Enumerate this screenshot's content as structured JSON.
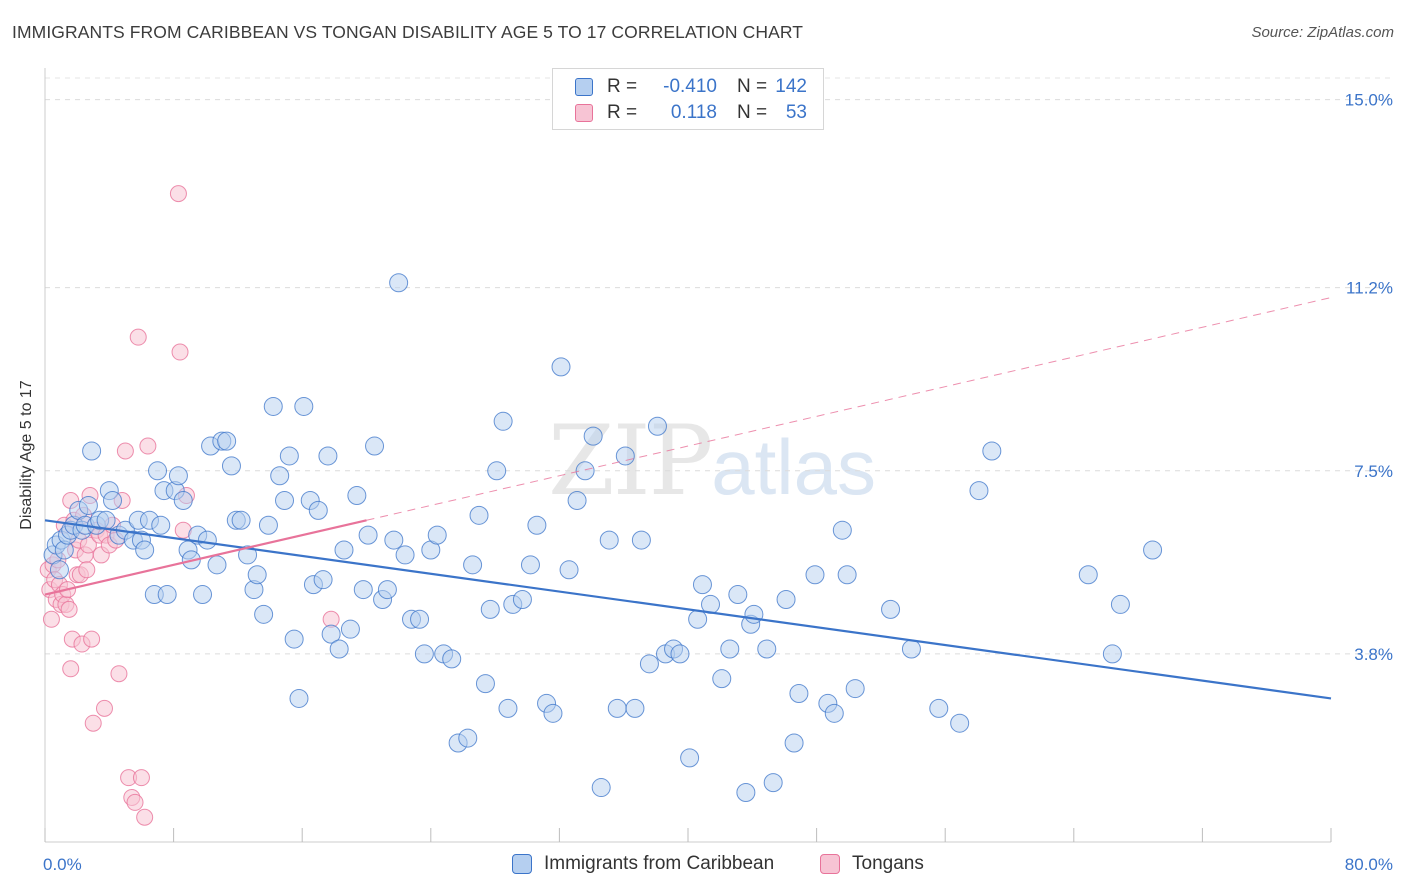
{
  "title": "IMMIGRANTS FROM CARIBBEAN VS TONGAN DISABILITY AGE 5 TO 17 CORRELATION CHART",
  "source": "Source: ZipAtlas.com",
  "watermark": {
    "zip": "ZIP",
    "atlas": "atlas"
  },
  "legend_top": {
    "rows": [
      {
        "r_label": "R =",
        "r_value": "-0.410",
        "n_label": "N =",
        "n_value": "142"
      },
      {
        "r_label": "R =",
        "r_value": "0.118",
        "n_label": "N =",
        "n_value": "53"
      }
    ]
  },
  "legend_bottom": {
    "series1": "Immigrants from Caribbean",
    "series2": "Tongans"
  },
  "chart_data": {
    "type": "scatter",
    "title": "IMMIGRANTS FROM CARIBBEAN VS TONGAN DISABILITY AGE 5 TO 17 CORRELATION CHART",
    "xlabel": "",
    "ylabel": "Disability Age 5 to 17",
    "xlim": [
      0,
      80
    ],
    "ylim": [
      0,
      15.8
    ],
    "x_tick_labels": [
      "0.0%",
      "80.0%"
    ],
    "y_tick_values": [
      3.8,
      7.5,
      11.2,
      15.0
    ],
    "y_tick_labels": [
      "3.8%",
      "7.5%",
      "11.2%",
      "15.0%"
    ],
    "grid": "horizontal dashed",
    "legend_position": "top-center",
    "colors": {
      "series1": "#3b74c9",
      "series2": "#e8739a",
      "series1_fill": "#b5cff0",
      "series2_fill": "#f7c4d4"
    },
    "series": [
      {
        "name": "Immigrants from Caribbean",
        "r": -0.41,
        "n": 142,
        "trend": {
          "x": [
            0,
            80
          ],
          "y": [
            6.5,
            2.9
          ],
          "style": "solid"
        },
        "points": [
          [
            0.5,
            5.8
          ],
          [
            0.7,
            6.0
          ],
          [
            0.9,
            5.5
          ],
          [
            1.0,
            6.1
          ],
          [
            1.2,
            5.9
          ],
          [
            1.4,
            6.2
          ],
          [
            1.6,
            6.3
          ],
          [
            1.8,
            6.4
          ],
          [
            2.1,
            6.7
          ],
          [
            2.3,
            6.3
          ],
          [
            2.5,
            6.4
          ],
          [
            2.7,
            6.8
          ],
          [
            2.9,
            7.9
          ],
          [
            3.2,
            6.4
          ],
          [
            3.4,
            6.5
          ],
          [
            3.8,
            6.5
          ],
          [
            4.0,
            7.1
          ],
          [
            4.2,
            6.9
          ],
          [
            4.6,
            6.2
          ],
          [
            5.0,
            6.3
          ],
          [
            5.5,
            6.1
          ],
          [
            5.8,
            6.5
          ],
          [
            6.0,
            6.1
          ],
          [
            6.2,
            5.9
          ],
          [
            6.5,
            6.5
          ],
          [
            6.8,
            5.0
          ],
          [
            7.0,
            7.5
          ],
          [
            7.2,
            6.4
          ],
          [
            7.4,
            7.1
          ],
          [
            7.6,
            5.0
          ],
          [
            8.1,
            7.1
          ],
          [
            8.3,
            7.4
          ],
          [
            8.6,
            6.9
          ],
          [
            8.9,
            5.9
          ],
          [
            9.1,
            5.7
          ],
          [
            9.5,
            6.2
          ],
          [
            9.8,
            5.0
          ],
          [
            10.1,
            6.1
          ],
          [
            10.3,
            8.0
          ],
          [
            10.7,
            5.6
          ],
          [
            11.0,
            8.1
          ],
          [
            11.3,
            8.1
          ],
          [
            11.6,
            7.6
          ],
          [
            11.9,
            6.5
          ],
          [
            12.2,
            6.5
          ],
          [
            12.6,
            5.8
          ],
          [
            13.0,
            5.1
          ],
          [
            13.2,
            5.4
          ],
          [
            13.6,
            4.6
          ],
          [
            13.9,
            6.4
          ],
          [
            14.2,
            8.8
          ],
          [
            14.6,
            7.4
          ],
          [
            14.9,
            6.9
          ],
          [
            15.2,
            7.8
          ],
          [
            15.5,
            4.1
          ],
          [
            15.8,
            2.9
          ],
          [
            16.1,
            8.8
          ],
          [
            16.5,
            6.9
          ],
          [
            16.7,
            5.2
          ],
          [
            17.0,
            6.7
          ],
          [
            17.3,
            5.3
          ],
          [
            17.6,
            7.8
          ],
          [
            17.8,
            4.2
          ],
          [
            18.3,
            3.9
          ],
          [
            18.6,
            5.9
          ],
          [
            19.0,
            4.3
          ],
          [
            19.4,
            7.0
          ],
          [
            19.8,
            5.1
          ],
          [
            20.1,
            6.2
          ],
          [
            20.5,
            8.0
          ],
          [
            21.0,
            4.9
          ],
          [
            21.3,
            5.1
          ],
          [
            21.7,
            6.1
          ],
          [
            22.0,
            11.3
          ],
          [
            22.4,
            5.8
          ],
          [
            22.8,
            4.5
          ],
          [
            23.3,
            4.5
          ],
          [
            23.6,
            3.8
          ],
          [
            24.0,
            5.9
          ],
          [
            24.4,
            6.2
          ],
          [
            24.8,
            3.8
          ],
          [
            25.3,
            3.7
          ],
          [
            25.7,
            2.0
          ],
          [
            26.3,
            2.1
          ],
          [
            26.6,
            5.6
          ],
          [
            27.0,
            6.6
          ],
          [
            27.4,
            3.2
          ],
          [
            27.7,
            4.7
          ],
          [
            28.1,
            7.5
          ],
          [
            28.5,
            8.5
          ],
          [
            28.8,
            2.7
          ],
          [
            29.1,
            4.8
          ],
          [
            29.7,
            4.9
          ],
          [
            30.2,
            5.6
          ],
          [
            30.6,
            6.4
          ],
          [
            31.2,
            2.8
          ],
          [
            31.6,
            2.6
          ],
          [
            32.1,
            9.6
          ],
          [
            32.6,
            5.5
          ],
          [
            33.1,
            6.9
          ],
          [
            33.6,
            7.5
          ],
          [
            34.1,
            8.2
          ],
          [
            34.6,
            1.1
          ],
          [
            35.1,
            6.1
          ],
          [
            35.6,
            2.7
          ],
          [
            36.1,
            7.8
          ],
          [
            36.7,
            2.7
          ],
          [
            37.1,
            6.1
          ],
          [
            37.6,
            3.6
          ],
          [
            38.1,
            8.4
          ],
          [
            38.6,
            3.8
          ],
          [
            39.1,
            3.9
          ],
          [
            39.5,
            3.8
          ],
          [
            40.1,
            1.7
          ],
          [
            40.6,
            4.5
          ],
          [
            40.9,
            5.2
          ],
          [
            41.4,
            4.8
          ],
          [
            42.1,
            3.3
          ],
          [
            42.6,
            3.9
          ],
          [
            43.1,
            5.0
          ],
          [
            43.6,
            1.0
          ],
          [
            43.9,
            4.4
          ],
          [
            44.1,
            4.6
          ],
          [
            44.9,
            3.9
          ],
          [
            45.3,
            1.2
          ],
          [
            46.1,
            4.9
          ],
          [
            46.6,
            2.0
          ],
          [
            46.9,
            3.0
          ],
          [
            47.9,
            5.4
          ],
          [
            48.7,
            2.8
          ],
          [
            49.1,
            2.6
          ],
          [
            49.6,
            6.3
          ],
          [
            49.9,
            5.4
          ],
          [
            50.4,
            3.1
          ],
          [
            52.6,
            4.7
          ],
          [
            53.9,
            3.9
          ],
          [
            55.6,
            2.7
          ],
          [
            56.9,
            2.4
          ],
          [
            58.1,
            7.1
          ],
          [
            58.9,
            7.9
          ],
          [
            64.9,
            5.4
          ],
          [
            66.4,
            3.8
          ],
          [
            66.9,
            4.8
          ],
          [
            68.9,
            5.9
          ]
        ]
      },
      {
        "name": "Tongans",
        "r": 0.118,
        "n": 53,
        "trend": {
          "x": [
            0,
            80
          ],
          "y": [
            5.0,
            11.0
          ],
          "style": "dashed beyond x=20"
        },
        "points": [
          [
            0.2,
            5.5
          ],
          [
            0.3,
            5.1
          ],
          [
            0.4,
            4.5
          ],
          [
            0.5,
            5.6
          ],
          [
            0.6,
            5.3
          ],
          [
            0.7,
            4.9
          ],
          [
            0.8,
            5.7
          ],
          [
            0.9,
            5.2
          ],
          [
            1.0,
            4.8
          ],
          [
            1.1,
            5.0
          ],
          [
            1.2,
            6.4
          ],
          [
            1.3,
            4.8
          ],
          [
            1.4,
            5.1
          ],
          [
            1.5,
            4.7
          ],
          [
            1.6,
            3.5
          ],
          [
            1.6,
            6.9
          ],
          [
            1.7,
            4.1
          ],
          [
            1.8,
            6.5
          ],
          [
            1.9,
            5.9
          ],
          [
            2.0,
            5.4
          ],
          [
            2.1,
            6.1
          ],
          [
            2.2,
            5.4
          ],
          [
            2.3,
            4.0
          ],
          [
            2.4,
            6.6
          ],
          [
            2.5,
            5.8
          ],
          [
            2.6,
            5.5
          ],
          [
            2.7,
            6.0
          ],
          [
            2.8,
            7.0
          ],
          [
            2.9,
            4.1
          ],
          [
            3.0,
            2.4
          ],
          [
            3.2,
            6.3
          ],
          [
            3.4,
            6.2
          ],
          [
            3.5,
            5.8
          ],
          [
            3.7,
            2.7
          ],
          [
            3.8,
            6.2
          ],
          [
            4.0,
            6.0
          ],
          [
            4.2,
            6.4
          ],
          [
            4.4,
            6.1
          ],
          [
            4.6,
            3.4
          ],
          [
            4.8,
            6.9
          ],
          [
            5.0,
            7.9
          ],
          [
            5.2,
            1.3
          ],
          [
            5.4,
            0.9
          ],
          [
            5.6,
            0.8
          ],
          [
            5.8,
            10.2
          ],
          [
            6.0,
            1.3
          ],
          [
            6.2,
            0.5
          ],
          [
            6.4,
            8.0
          ],
          [
            8.3,
            13.1
          ],
          [
            8.4,
            9.9
          ],
          [
            8.6,
            6.3
          ],
          [
            8.8,
            7.0
          ],
          [
            17.8,
            4.5
          ]
        ]
      }
    ]
  }
}
